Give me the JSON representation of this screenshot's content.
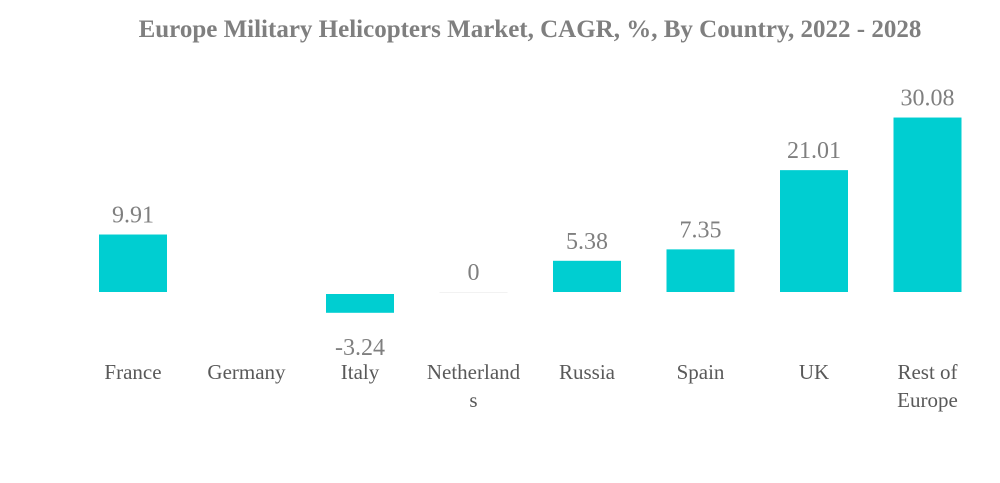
{
  "chart_data": {
    "type": "bar",
    "title": "Europe Military Helicopters Market, CAGR, %, By Country, 2022 - 2028",
    "categories": [
      "France",
      "Germany",
      "Italy",
      "Netherlands",
      "Russia",
      "Spain",
      "UK",
      "Rest of Europe"
    ],
    "category_lines": [
      [
        "France"
      ],
      [
        "Germany"
      ],
      [
        "Italy"
      ],
      [
        "Netherland",
        "s"
      ],
      [
        "Russia"
      ],
      [
        "Spain"
      ],
      [
        "UK"
      ],
      [
        "Rest of",
        "Europe"
      ]
    ],
    "values": [
      9.91,
      null,
      -3.24,
      0,
      5.38,
      7.35,
      21.01,
      30.08
    ],
    "value_labels": [
      "9.91",
      "",
      "-3.24",
      "0",
      "5.38",
      "7.35",
      "21.01",
      "30.08"
    ],
    "xlabel": "",
    "ylabel": "",
    "ylim": [
      -4,
      31
    ],
    "grid": false,
    "legend": "none",
    "bar_color": "#00ced1"
  }
}
